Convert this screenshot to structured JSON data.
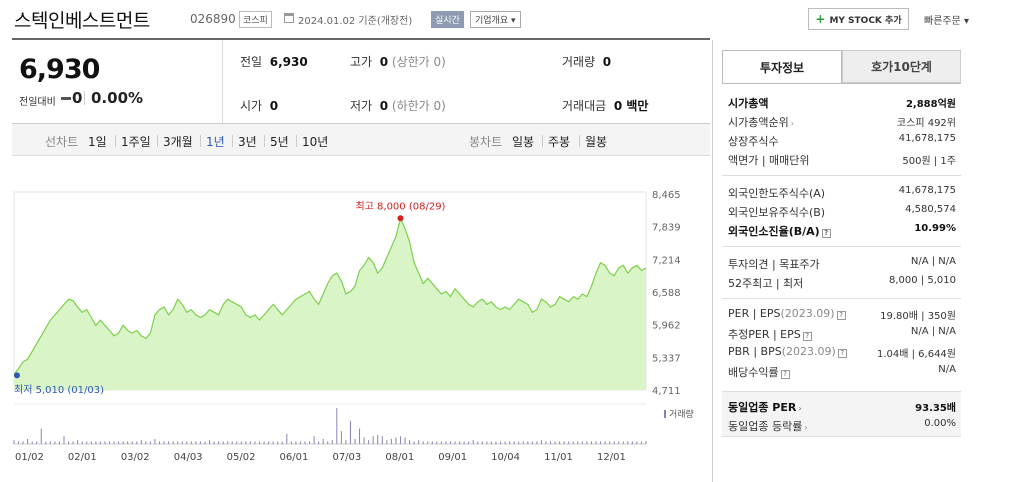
{
  "header": {
    "name": "스텍인베스트먼트",
    "code": "026890",
    "market": "코스피",
    "date_text": "2024.01.02  기준(개장전)",
    "realtime_label": "실시간",
    "company_btn": "기업개요 ▾",
    "mystock_label": "MY STOCK 추가",
    "quick_order": "빠른주문 ▾"
  },
  "quote": {
    "price": "6,930",
    "change_label": "전일대비",
    "change": "0",
    "change_pct": "0.00%",
    "prev_label": "전일",
    "prev": "6,930",
    "high_label": "고가",
    "high": "0",
    "high_sub": "(상한가 0)",
    "volume_label": "거래량",
    "volume": "0",
    "open_label": "시가",
    "open": "0",
    "low_label": "저가",
    "low": "0",
    "low_sub": "(하한가 0)",
    "amount_label": "거래대금",
    "amount": "0 백만"
  },
  "periods": {
    "line_label": "선차트",
    "line_items": [
      "1일",
      "1주일",
      "3개월",
      "1년",
      "3년",
      "5년",
      "10년"
    ],
    "selected": "1년",
    "candle_label": "봉차트",
    "candle_items": [
      "일봉",
      "주봉",
      "월봉"
    ]
  },
  "chart_data": {
    "type": "area",
    "y_ticks": [
      "8,465",
      "7,839",
      "7,214",
      "6,588",
      "5,962",
      "5,337",
      "4,711"
    ],
    "ylim": [
      4711,
      8465
    ],
    "x_ticks": [
      "01/02",
      "02/01",
      "03/02",
      "04/03",
      "05/02",
      "06/01",
      "07/03",
      "08/01",
      "09/01",
      "10/04",
      "11/01",
      "12/01"
    ],
    "high_annotation": "최고 8,000 (08/29)",
    "low_annotation": "최저 5,010 (01/03)",
    "values": [
      5010,
      5120,
      5250,
      5300,
      5450,
      5600,
      5750,
      5900,
      6050,
      6150,
      6250,
      6350,
      6450,
      6420,
      6300,
      6200,
      6250,
      6100,
      5950,
      6050,
      5950,
      5850,
      5750,
      5800,
      5950,
      5850,
      5800,
      5850,
      5750,
      5700,
      5800,
      6150,
      6250,
      6300,
      6150,
      6250,
      6450,
      6350,
      6200,
      6250,
      6150,
      6100,
      6150,
      6250,
      6200,
      6150,
      6350,
      6450,
      6400,
      6350,
      6300,
      6150,
      6100,
      6150,
      6050,
      6150,
      6250,
      6350,
      6250,
      6150,
      6250,
      6350,
      6450,
      6500,
      6550,
      6600,
      6450,
      6350,
      6550,
      6750,
      6900,
      6950,
      6800,
      6550,
      6600,
      6700,
      7000,
      7100,
      7250,
      7150,
      6950,
      7050,
      7250,
      7450,
      7650,
      8000,
      7800,
      7550,
      7150,
      6950,
      6750,
      6850,
      6750,
      6650,
      6550,
      6600,
      6500,
      6650,
      6550,
      6450,
      6350,
      6300,
      6400,
      6450,
      6350,
      6400,
      6300,
      6250,
      6300,
      6250,
      6350,
      6450,
      6400,
      6350,
      6200,
      6250,
      6450,
      6400,
      6300,
      6350,
      6500,
      6450,
      6400,
      6500,
      6450,
      6550,
      6500,
      6700,
      6950,
      7150,
      7100,
      6950,
      6900,
      7050,
      7100,
      6950,
      7050,
      7100,
      7000,
      7050
    ],
    "volume_label": "거래량",
    "volumes": [
      3,
      2,
      2,
      4,
      2,
      2,
      12,
      2,
      2,
      2,
      2,
      6,
      2,
      2,
      3,
      2,
      2,
      2,
      2,
      2,
      2,
      2,
      2,
      2,
      2,
      2,
      2,
      2,
      3,
      2,
      2,
      4,
      2,
      2,
      2,
      2,
      2,
      2,
      2,
      2,
      2,
      2,
      2,
      3,
      2,
      2,
      2,
      2,
      2,
      2,
      2,
      2,
      2,
      2,
      2,
      2,
      2,
      2,
      2,
      2,
      8,
      2,
      2,
      2,
      2,
      2,
      6,
      2,
      4,
      2,
      3,
      28,
      10,
      3,
      18,
      4,
      12,
      5,
      3,
      6,
      7,
      6,
      3,
      4,
      5,
      6,
      5,
      3,
      2,
      3,
      2,
      2,
      2,
      2,
      2,
      2,
      2,
      2,
      2,
      2,
      2,
      3,
      2,
      2,
      2,
      2,
      2,
      2,
      2,
      2,
      2,
      2,
      2,
      2,
      2,
      2,
      3,
      2,
      2,
      2,
      2,
      2,
      2,
      2,
      2,
      2,
      2,
      2,
      2,
      2,
      2,
      2,
      2,
      2,
      2,
      2,
      2,
      2,
      2,
      2
    ]
  },
  "panel": {
    "tab_info": "투자정보",
    "tab_hoga": "호가10단계",
    "market_cap_label": "시가총액",
    "market_cap": "2,888억원",
    "rank_label": "시가총액순위",
    "rank": "코스피 492위",
    "shares_label": "상장주식수",
    "shares": "41,678,175",
    "par_label": "액면가 | 매매단위",
    "par": "500원 | 1주",
    "foreign_limit_label": "외국인한도주식수(A)",
    "foreign_limit": "41,678,175",
    "foreign_hold_label": "외국인보유주식수(B)",
    "foreign_hold": "4,580,574",
    "foreign_ratio_label": "외국인소진율(B/A)",
    "foreign_ratio": "10.99%",
    "opinion_label": "투자의견 | 목표주가",
    "opinion": "N/A | N/A",
    "range_label": "52주최고 | 최저",
    "range": "8,000 | 5,010",
    "per_label": "PER | EPS",
    "per_sub": "(2023.09)",
    "per": "19.80배 | 350원",
    "est_label": "추정PER | EPS",
    "est": "N/A | N/A",
    "pbr_label": "PBR | BPS",
    "pbr_sub": "(2023.09)",
    "pbr": "1.04배 | 6,644원",
    "div_label": "배당수익률",
    "div": "N/A",
    "ind_per_label": "동일업종 PER",
    "ind_per": "93.35배",
    "ind_rate_label": "동일업종 등락률",
    "ind_rate": "0.00%"
  },
  "colors": {
    "accent": "#2f59b8",
    "up": "#d22222",
    "line": "#7cd04a",
    "fill": "#d9f5c7",
    "volume": "#8a7fb5"
  }
}
